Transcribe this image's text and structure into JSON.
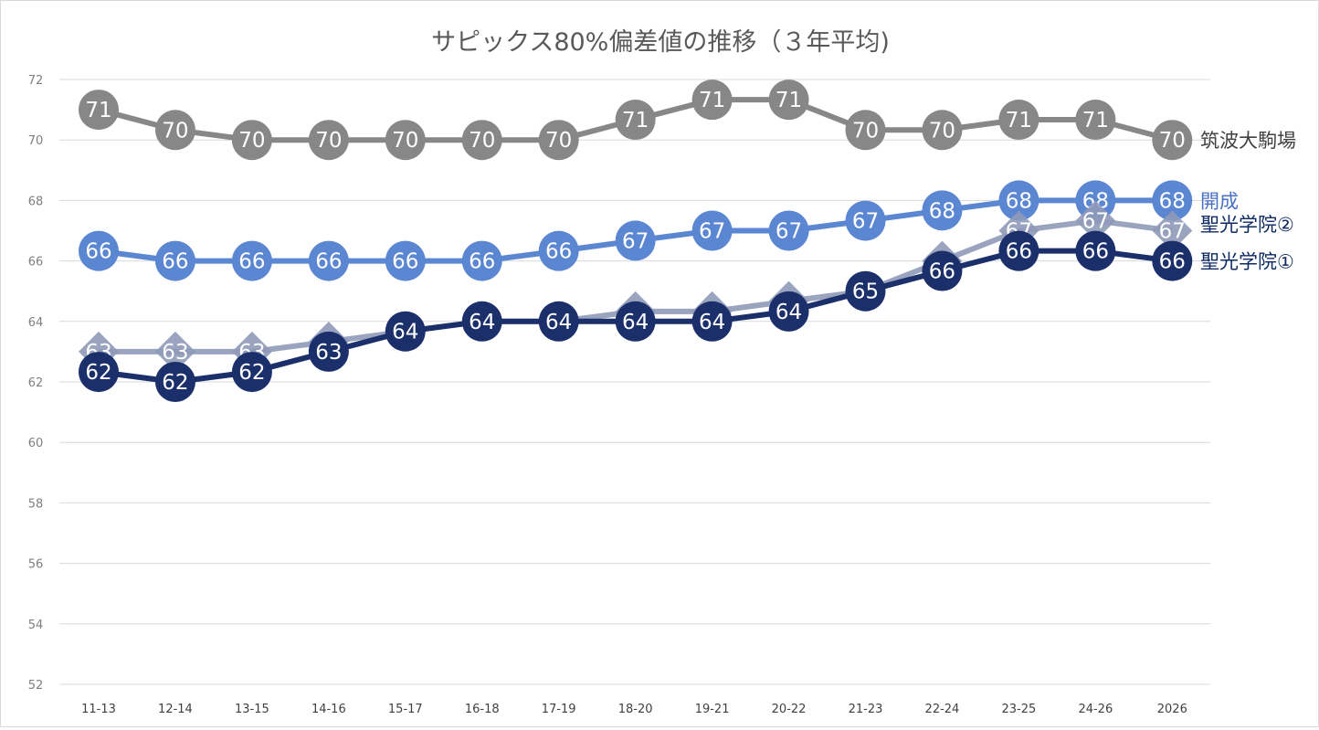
{
  "chart_data": {
    "type": "line",
    "title": "サピックス80%偏差値の推移（３年平均)",
    "xlabel": "",
    "ylabel": "",
    "ylim": [
      52,
      72
    ],
    "yticks": [
      "52",
      "54",
      "56",
      "58",
      "60",
      "62",
      "64",
      "66",
      "68",
      "70",
      "72"
    ],
    "grid": true,
    "legend": "none (series labels at line ends)",
    "categories": [
      "11-13",
      "12-14",
      "13-15",
      "14-16",
      "15-17",
      "16-18",
      "17-19",
      "18-20",
      "19-21",
      "20-22",
      "21-23",
      "22-24",
      "23-25",
      "24-26",
      "2026"
    ],
    "series": [
      {
        "name": "筑波大駒場",
        "color": "#878787",
        "marker": "circle",
        "values": [
          71,
          70.33,
          70,
          70,
          70,
          70,
          70,
          70.67,
          71.33,
          71.33,
          70.33,
          70.33,
          70.67,
          70.67,
          70
        ],
        "labels": [
          "71",
          "70",
          "70",
          "70",
          "70",
          "70",
          "70",
          "71",
          "71",
          "71",
          "70",
          "70",
          "71",
          "71",
          "70"
        ]
      },
      {
        "name": "開成",
        "color": "#5b86d1",
        "label_color": "#4a72c4",
        "marker": "circle",
        "values": [
          66.33,
          66,
          66,
          66,
          66,
          66,
          66.33,
          66.67,
          67,
          67,
          67.33,
          67.67,
          68,
          68,
          68
        ],
        "labels": [
          "66",
          "66",
          "66",
          "66",
          "66",
          "66",
          "66",
          "67",
          "67",
          "67",
          "67",
          "68",
          "68",
          "68",
          "68"
        ]
      },
      {
        "name": "聖光学院②",
        "color": "#8f9ab8",
        "label_color": "#0f2a63",
        "marker": "diamond",
        "values": [
          63,
          63,
          63,
          63.33,
          63.67,
          64,
          64,
          64.33,
          64.33,
          64.67,
          65,
          66,
          67,
          67.33,
          67
        ],
        "labels": [
          "63",
          "63",
          "63",
          "",
          "",
          "",
          "",
          "",
          "",
          "",
          "",
          "",
          "67",
          "67",
          "67"
        ]
      },
      {
        "name": "聖光学院①",
        "color": "#1b2f6b",
        "label_color": "#0f2a63",
        "marker": "circle",
        "values": [
          62.33,
          62,
          62.33,
          63,
          63.67,
          64,
          64,
          64,
          64,
          64.33,
          65,
          65.67,
          66.33,
          66.33,
          66
        ],
        "labels": [
          "62",
          "62",
          "62",
          "63",
          "64",
          "64",
          "64",
          "64",
          "64",
          "64",
          "65",
          "66",
          "66",
          "66",
          "66"
        ]
      }
    ]
  }
}
